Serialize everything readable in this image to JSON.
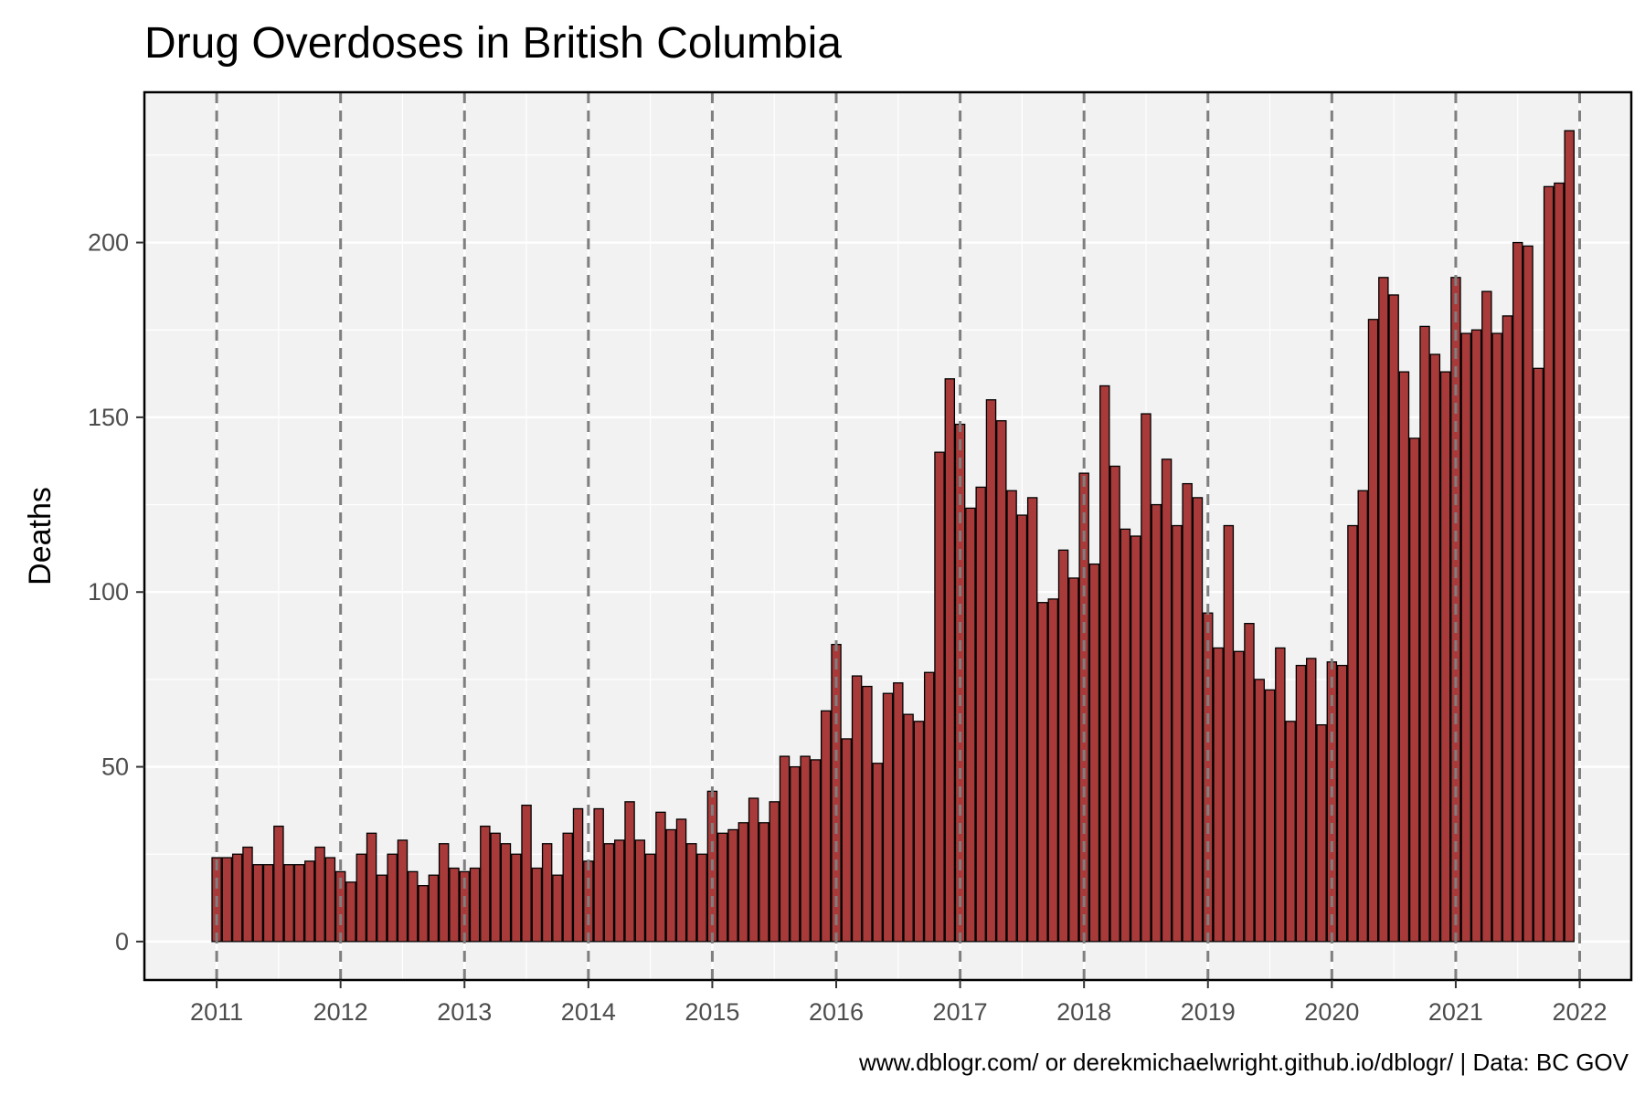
{
  "chart_data": {
    "type": "bar",
    "title": "Drug Overdoses in British Columbia",
    "xlabel": "",
    "ylabel": "Deaths",
    "caption": "www.dblogr.com/ or derekmichaelwright.github.io/dblogr/ | Data: BC GOV",
    "x_ticks": [
      "2011",
      "2012",
      "2013",
      "2014",
      "2015",
      "2016",
      "2017",
      "2018",
      "2019",
      "2020",
      "2021",
      "2022"
    ],
    "y_ticks": [
      0,
      50,
      100,
      150,
      200
    ],
    "xlim": [
      "2010-06",
      "2022-06"
    ],
    "ylim": [
      -11,
      243
    ],
    "start": "2011-01",
    "frequency": "monthly",
    "values": [
      24,
      24,
      25,
      27,
      22,
      22,
      33,
      22,
      22,
      23,
      27,
      24,
      20,
      17,
      25,
      31,
      19,
      25,
      29,
      20,
      16,
      19,
      28,
      21,
      20,
      21,
      33,
      31,
      28,
      25,
      39,
      21,
      28,
      19,
      31,
      38,
      23,
      38,
      28,
      29,
      40,
      29,
      25,
      37,
      32,
      35,
      28,
      25,
      43,
      31,
      32,
      34,
      41,
      34,
      40,
      53,
      50,
      53,
      52,
      66,
      85,
      58,
      76,
      73,
      51,
      71,
      74,
      65,
      63,
      77,
      140,
      161,
      148,
      124,
      130,
      155,
      149,
      129,
      122,
      127,
      97,
      98,
      112,
      104,
      134,
      108,
      159,
      136,
      118,
      116,
      151,
      125,
      138,
      119,
      131,
      127,
      94,
      84,
      119,
      83,
      91,
      75,
      72,
      84,
      63,
      79,
      81,
      62,
      80,
      79,
      119,
      129,
      178,
      190,
      185,
      163,
      144,
      176,
      168,
      163,
      190,
      174,
      175,
      186,
      174,
      179,
      200,
      199,
      164,
      216,
      217,
      232
    ],
    "bar_color": "#a83a3a",
    "bar_outline": "#000000",
    "panel_background": "#f2f2f2",
    "grid": true,
    "year_lines": "dashed"
  }
}
